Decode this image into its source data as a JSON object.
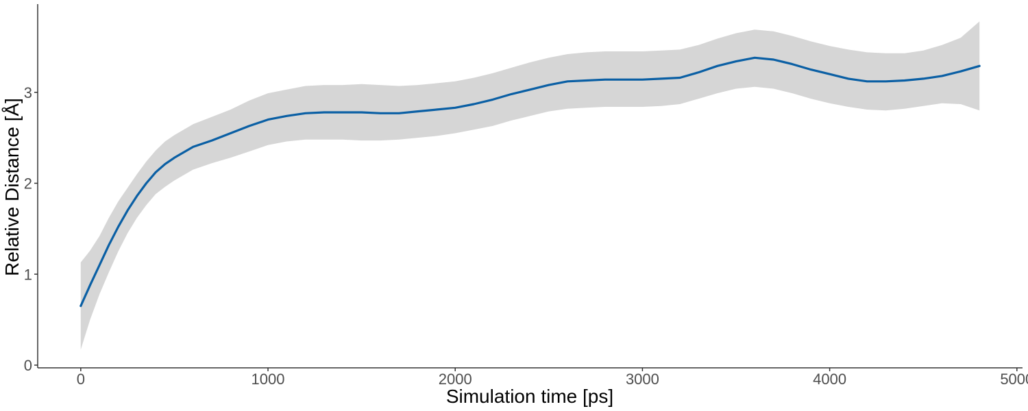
{
  "chart_data": {
    "type": "line",
    "title": "",
    "xlabel": "Simulation time [ps]",
    "ylabel": "Relative Distance [Å]",
    "xlim": [
      -230,
      5030
    ],
    "ylim": [
      -0.03,
      3.97
    ],
    "xticks": [
      0,
      1000,
      2000,
      3000,
      4000,
      5000
    ],
    "yticks": [
      0,
      1,
      2,
      3
    ],
    "grid": false,
    "legend": "none",
    "series": [
      {
        "color": "#0a5fa4",
        "ribbon_color": "#d6d6d6",
        "x": [
          0,
          50,
          100,
          150,
          200,
          250,
          300,
          350,
          400,
          450,
          500,
          600,
          700,
          800,
          900,
          1000,
          1100,
          1200,
          1300,
          1400,
          1500,
          1600,
          1700,
          1800,
          1900,
          2000,
          2100,
          2200,
          2300,
          2400,
          2500,
          2600,
          2700,
          2800,
          2900,
          3000,
          3100,
          3200,
          3300,
          3400,
          3500,
          3600,
          3700,
          3800,
          3900,
          4000,
          4100,
          4200,
          4300,
          4400,
          4500,
          4600,
          4700,
          4800
        ],
        "y": [
          0.65,
          0.88,
          1.1,
          1.32,
          1.52,
          1.7,
          1.86,
          2.0,
          2.12,
          2.21,
          2.28,
          2.4,
          2.47,
          2.55,
          2.63,
          2.7,
          2.74,
          2.77,
          2.78,
          2.78,
          2.78,
          2.77,
          2.77,
          2.79,
          2.81,
          2.83,
          2.87,
          2.92,
          2.98,
          3.03,
          3.08,
          3.12,
          3.13,
          3.14,
          3.14,
          3.14,
          3.15,
          3.16,
          3.22,
          3.29,
          3.34,
          3.38,
          3.36,
          3.31,
          3.25,
          3.2,
          3.15,
          3.12,
          3.12,
          3.13,
          3.15,
          3.18,
          3.23,
          3.29
        ],
        "lower": [
          0.17,
          0.5,
          0.78,
          1.02,
          1.25,
          1.45,
          1.62,
          1.76,
          1.88,
          1.96,
          2.03,
          2.15,
          2.22,
          2.28,
          2.35,
          2.42,
          2.46,
          2.48,
          2.48,
          2.48,
          2.47,
          2.47,
          2.48,
          2.5,
          2.52,
          2.55,
          2.59,
          2.63,
          2.69,
          2.74,
          2.79,
          2.82,
          2.83,
          2.84,
          2.84,
          2.84,
          2.85,
          2.87,
          2.93,
          2.99,
          3.04,
          3.06,
          3.04,
          2.99,
          2.93,
          2.88,
          2.84,
          2.81,
          2.8,
          2.82,
          2.85,
          2.88,
          2.87,
          2.8
        ],
        "upper": [
          1.13,
          1.26,
          1.42,
          1.62,
          1.8,
          1.95,
          2.1,
          2.24,
          2.36,
          2.46,
          2.53,
          2.65,
          2.73,
          2.81,
          2.91,
          2.99,
          3.03,
          3.07,
          3.08,
          3.08,
          3.09,
          3.08,
          3.07,
          3.08,
          3.1,
          3.12,
          3.16,
          3.21,
          3.27,
          3.33,
          3.38,
          3.42,
          3.44,
          3.45,
          3.45,
          3.45,
          3.46,
          3.47,
          3.52,
          3.59,
          3.65,
          3.69,
          3.67,
          3.62,
          3.56,
          3.51,
          3.47,
          3.44,
          3.43,
          3.43,
          3.46,
          3.52,
          3.6,
          3.78
        ]
      }
    ]
  }
}
